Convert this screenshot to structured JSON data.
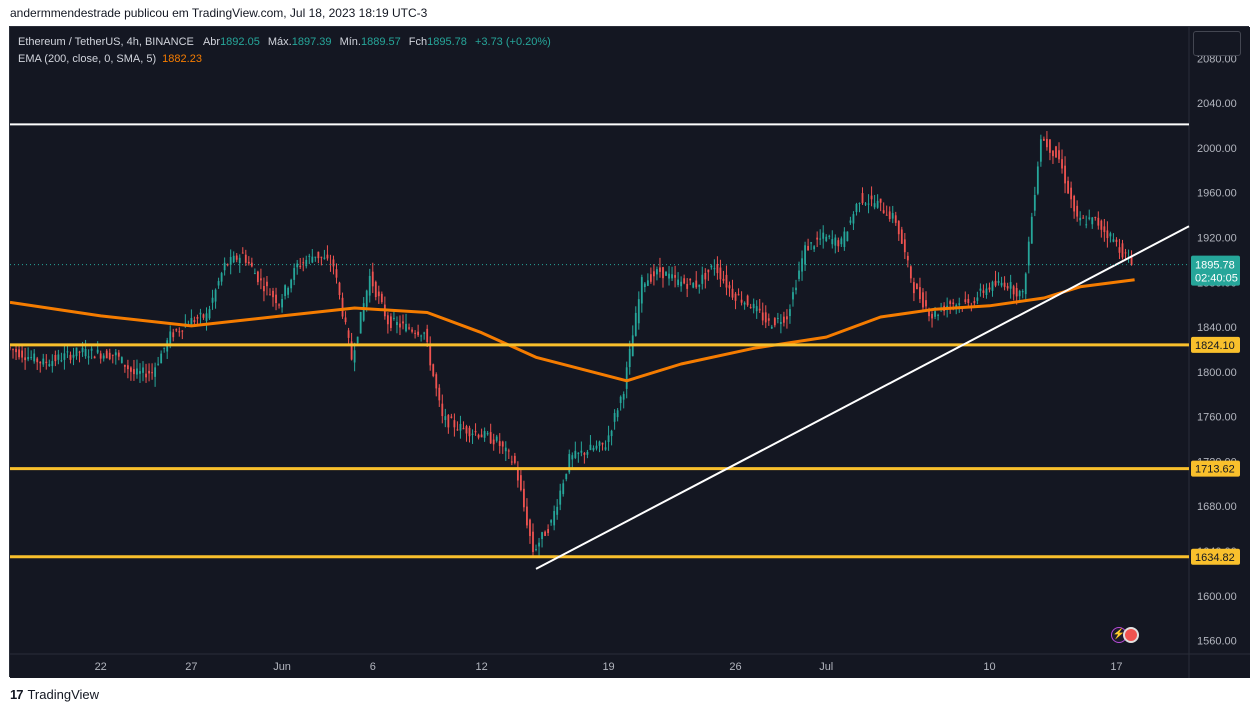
{
  "caption": "andermmendestrade publicou em TradingView.com, Jul 18, 2023 18:19 UTC-3",
  "brand": "TradingView",
  "legend": {
    "symbol": "Ethereum / TetherUS, 4h, BINANCE",
    "open_label": "Abr",
    "open": "1892.05",
    "high_label": "Máx.",
    "high": "1897.39",
    "low_label": "Mín.",
    "low": "1889.57",
    "close_label": "Fch",
    "close": "1895.78",
    "change": "+3.73 (+0.20%)",
    "ema_label": "EMA (200, close, 0, SMA, 5)",
    "ema_value": "1882.23"
  },
  "chart_data": {
    "type": "candlestick",
    "y_ticks": [
      "1560.00",
      "1600.00",
      "1640.00",
      "1680.00",
      "1720.00",
      "1760.00",
      "1800.00",
      "1840.00",
      "1880.00",
      "1920.00",
      "1960.00",
      "2000.00",
      "2040.00",
      "2080.00"
    ],
    "x_ticks": [
      {
        "label": "22",
        "date": "2023-05-22"
      },
      {
        "label": "27",
        "date": "2023-05-27"
      },
      {
        "label": "Jun",
        "date": "2023-06-01"
      },
      {
        "label": "6",
        "date": "2023-06-06"
      },
      {
        "label": "12",
        "date": "2023-06-12"
      },
      {
        "label": "19",
        "date": "2023-06-19"
      },
      {
        "label": "26",
        "date": "2023-06-26"
      },
      {
        "label": "Jul",
        "date": "2023-07-01"
      },
      {
        "label": "10",
        "date": "2023-07-10"
      },
      {
        "label": "17",
        "date": "2023-07-17"
      }
    ],
    "x_range": [
      "2023-05-17",
      "2023-07-21"
    ],
    "y_range": [
      1548,
      2108
    ],
    "price_path": [
      [
        "2023-05-17",
        1822
      ],
      [
        "2023-05-19",
        1808
      ],
      [
        "2023-05-21",
        1818
      ],
      [
        "2023-05-23",
        1815
      ],
      [
        "2023-05-24",
        1798
      ],
      [
        "2023-05-25",
        1800
      ],
      [
        "2023-05-26",
        1832
      ],
      [
        "2023-05-27",
        1845
      ],
      [
        "2023-05-28",
        1850
      ],
      [
        "2023-05-29",
        1895
      ],
      [
        "2023-05-30",
        1905
      ],
      [
        "2023-05-31",
        1880
      ],
      [
        "2023-06-01",
        1862
      ],
      [
        "2023-06-02",
        1895
      ],
      [
        "2023-06-03",
        1905
      ],
      [
        "2023-06-04",
        1895
      ],
      [
        "2023-06-05",
        1812
      ],
      [
        "2023-06-06",
        1885
      ],
      [
        "2023-06-07",
        1845
      ],
      [
        "2023-06-08",
        1840
      ],
      [
        "2023-06-09",
        1835
      ],
      [
        "2023-06-10",
        1758
      ],
      [
        "2023-06-11",
        1750
      ],
      [
        "2023-06-12",
        1745
      ],
      [
        "2023-06-13",
        1738
      ],
      [
        "2023-06-14",
        1718
      ],
      [
        "2023-06-15",
        1640
      ],
      [
        "2023-06-16",
        1665
      ],
      [
        "2023-06-17",
        1722
      ],
      [
        "2023-06-18",
        1730
      ],
      [
        "2023-06-19",
        1735
      ],
      [
        "2023-06-20",
        1785
      ],
      [
        "2023-06-21",
        1880
      ],
      [
        "2023-06-22",
        1890
      ],
      [
        "2023-06-23",
        1880
      ],
      [
        "2023-06-24",
        1878
      ],
      [
        "2023-06-25",
        1895
      ],
      [
        "2023-06-26",
        1870
      ],
      [
        "2023-06-27",
        1860
      ],
      [
        "2023-06-28",
        1843
      ],
      [
        "2023-06-29",
        1850
      ],
      [
        "2023-06-30",
        1910
      ],
      [
        "2023-07-01",
        1920
      ],
      [
        "2023-07-02",
        1915
      ],
      [
        "2023-07-03",
        1955
      ],
      [
        "2023-07-04",
        1950
      ],
      [
        "2023-07-05",
        1935
      ],
      [
        "2023-07-06",
        1875
      ],
      [
        "2023-07-07",
        1850
      ],
      [
        "2023-07-08",
        1862
      ],
      [
        "2023-07-09",
        1860
      ],
      [
        "2023-07-10",
        1875
      ],
      [
        "2023-07-11",
        1880
      ],
      [
        "2023-07-12",
        1868
      ],
      [
        "2023-07-13",
        2010
      ],
      [
        "2023-07-14",
        1990
      ],
      [
        "2023-07-15",
        1935
      ],
      [
        "2023-07-16",
        1935
      ],
      [
        "2023-07-17",
        1918
      ],
      [
        "2023-07-18",
        1895.78
      ]
    ],
    "ema200": [
      [
        "2023-05-17",
        1862
      ],
      [
        "2023-05-22",
        1850
      ],
      [
        "2023-05-27",
        1841
      ],
      [
        "2023-06-01",
        1850
      ],
      [
        "2023-06-05",
        1857
      ],
      [
        "2023-06-09",
        1853
      ],
      [
        "2023-06-12",
        1835
      ],
      [
        "2023-06-15",
        1813
      ],
      [
        "2023-06-20",
        1792
      ],
      [
        "2023-06-23",
        1807
      ],
      [
        "2023-06-27",
        1821
      ],
      [
        "2023-07-01",
        1831
      ],
      [
        "2023-07-04",
        1849
      ],
      [
        "2023-07-07",
        1856
      ],
      [
        "2023-07-10",
        1859
      ],
      [
        "2023-07-13",
        1866
      ],
      [
        "2023-07-15",
        1876
      ],
      [
        "2023-07-18",
        1882.23
      ]
    ],
    "horizontal_levels": [
      {
        "value": 1824.1,
        "label": "1824.10",
        "color": "#f9c02c"
      },
      {
        "value": 1713.62,
        "label": "1713.62",
        "color": "#f9c02c"
      },
      {
        "value": 1634.82,
        "label": "1634.82",
        "color": "#f9c02c"
      },
      {
        "value": 2021,
        "label": "",
        "color": "#ffffff"
      }
    ],
    "trendline": [
      [
        "2023-06-15",
        1624
      ],
      [
        "2023-07-21",
        1930
      ]
    ],
    "last_price": {
      "value": 1895.78,
      "label": "1895.78",
      "countdown": "02:40:05"
    },
    "colors": {
      "up": "#26a69a",
      "down": "#ef5350",
      "ema": "#f57c00",
      "level": "#f9c02c",
      "background": "#141722"
    }
  }
}
